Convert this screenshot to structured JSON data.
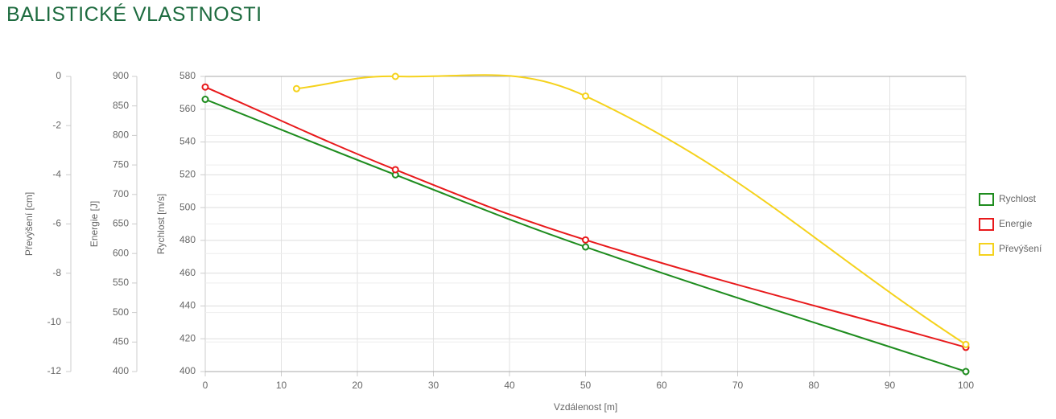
{
  "chart_data": {
    "type": "line",
    "title": "BALISTICKÉ VLASTNOSTI",
    "x_label": "Vzdálenost [m]",
    "y_label": "Rychlost [m/s]",
    "y2_label": "Energie [J]",
    "y3_label": "Převýšení [cm]",
    "xlim": [
      0,
      100
    ],
    "xticks": [
      0,
      10,
      20,
      30,
      40,
      50,
      60,
      70,
      80,
      90,
      100
    ],
    "ylim": [
      400,
      580
    ],
    "yticks": [
      400,
      420,
      440,
      460,
      480,
      500,
      520,
      540,
      560,
      580
    ],
    "y2lim": [
      400,
      900
    ],
    "y2ticks": [
      400,
      450,
      500,
      550,
      600,
      650,
      700,
      750,
      800,
      850,
      900
    ],
    "y3lim": [
      -12,
      0
    ],
    "y3ticks": [
      -12,
      -10,
      -8,
      -6,
      -4,
      -2,
      0
    ],
    "grid": true,
    "legend": "right",
    "series": [
      {
        "name": "Rychlost",
        "color": "#1e8c1e",
        "axis": "y",
        "x": [
          0,
          25,
          50,
          100
        ],
        "values": [
          566,
          520,
          476,
          400
        ]
      },
      {
        "name": "Energie",
        "color": "#e8191b",
        "axis": "y2",
        "x": [
          0,
          25,
          50,
          100
        ],
        "values": [
          882,
          742,
          623,
          441
        ]
      },
      {
        "name": "Převýšení",
        "color": "#f5d21c",
        "axis": "y3",
        "x": [
          12,
          25,
          50,
          100
        ],
        "values": [
          -0.5,
          0,
          -0.8,
          -10.9
        ]
      }
    ]
  }
}
